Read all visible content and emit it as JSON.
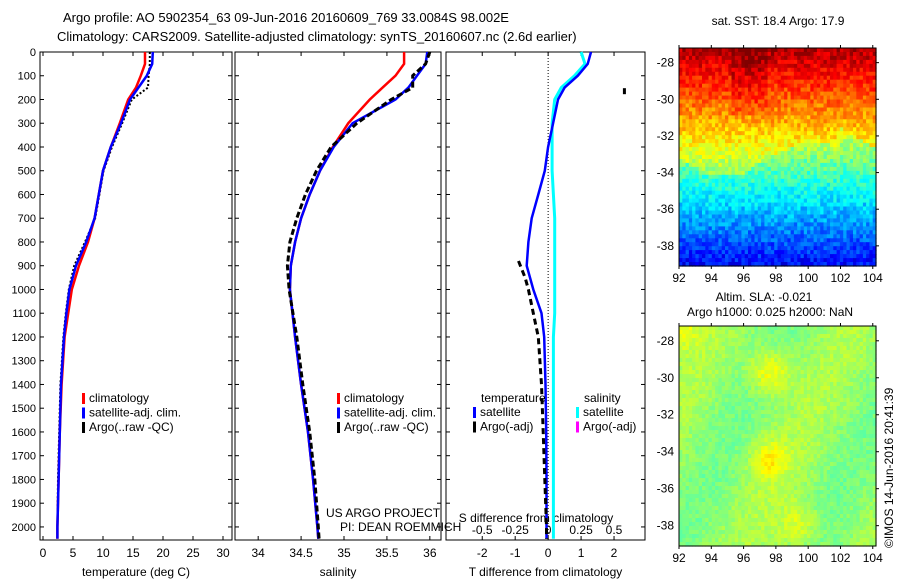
{
  "title_line1": "Argo profile: AO 5902354_63 09-Jun-2016 20160609_769 33.0084S 98.002E",
  "title_line2": "Climatology: CARS2009. Satellite-adjusted climatology: synTS_20160607.nc (2.6d earlier)",
  "credit": "©IMOS 14-Jun-2016 20:41:39",
  "project_line1": "US ARGO PROJECT",
  "project_line2": "PI: DEAN ROEMMICH",
  "colors": {
    "climatology": "#ff0000",
    "satellite": "#0000ff",
    "argo": "#000000",
    "sal_satellite": "#00ffff",
    "sal_argo": "#ff00ff"
  },
  "chart_data": [
    {
      "type": "line",
      "xlabel": "temperature (deg C)",
      "ylabel": "",
      "xlim": [
        -0.5,
        31.5
      ],
      "ylim": [
        2055,
        0
      ],
      "xticks": [
        0,
        5,
        10,
        15,
        20,
        25,
        30
      ],
      "yticks": [
        0,
        100,
        200,
        300,
        400,
        500,
        600,
        700,
        800,
        900,
        1000,
        1100,
        1200,
        1300,
        1400,
        1500,
        1600,
        1700,
        1800,
        1900,
        2000
      ],
      "legend": [
        "climatology",
        "satellite-adj. clim.",
        "Argo(..raw -QC)"
      ],
      "depth": [
        0,
        50,
        100,
        150,
        200,
        300,
        400,
        500,
        600,
        700,
        800,
        900,
        1000,
        1100,
        1200,
        1400,
        1600,
        1800,
        2000,
        2050
      ],
      "series": [
        {
          "name": "climatology",
          "values": [
            17.0,
            17.0,
            16.3,
            15.5,
            14.2,
            12.8,
            11.3,
            10.0,
            9.3,
            8.6,
            7.5,
            6.0,
            4.8,
            4.2,
            3.6,
            3.1,
            2.8,
            2.6,
            2.4,
            2.4
          ]
        },
        {
          "name": "satellite-adj. clim.",
          "values": [
            18.3,
            18.2,
            17.3,
            15.9,
            14.5,
            13.0,
            11.3,
            10.0,
            9.3,
            8.6,
            7.2,
            5.5,
            4.4,
            3.9,
            3.5,
            3.0,
            2.8,
            2.6,
            2.4,
            2.4
          ]
        },
        {
          "name": "Argo(..raw -QC)",
          "values": [
            17.8,
            17.8,
            17.6,
            17.5,
            14.8,
            13.2,
            11.5,
            10.1,
            9.4,
            8.7,
            7.0,
            5.2,
            4.3,
            3.8,
            3.4,
            2.9,
            2.7,
            2.5,
            2.4,
            2.4
          ]
        }
      ]
    },
    {
      "type": "line",
      "xlabel": "salinity",
      "xlim": [
        33.73,
        36.13
      ],
      "ylim": [
        2055,
        0
      ],
      "xticks": [
        34,
        34.5,
        35,
        35.5,
        36
      ],
      "legend": [
        "climatology",
        "satellite-adj. clim.",
        "Argo(..raw -QC)"
      ],
      "depth": [
        0,
        50,
        100,
        150,
        200,
        300,
        400,
        500,
        600,
        700,
        800,
        900,
        1000,
        1200,
        1400,
        1600,
        1800,
        2000,
        2050
      ],
      "series": [
        {
          "name": "climatology",
          "values": [
            35.7,
            35.7,
            35.6,
            35.45,
            35.3,
            35.05,
            34.87,
            34.72,
            34.6,
            34.5,
            34.43,
            34.38,
            34.37,
            34.43,
            34.5,
            34.58,
            34.64,
            34.69,
            34.7
          ]
        },
        {
          "name": "satellite-adj. clim.",
          "values": [
            35.97,
            35.95,
            35.85,
            35.75,
            35.6,
            35.1,
            34.88,
            34.72,
            34.6,
            34.5,
            34.43,
            34.38,
            34.37,
            34.43,
            34.5,
            34.58,
            34.64,
            34.69,
            34.7
          ]
        },
        {
          "name": "Argo(..raw -QC)",
          "values": [
            36.0,
            35.95,
            35.8,
            35.8,
            35.55,
            35.15,
            34.85,
            34.68,
            34.55,
            34.45,
            34.37,
            34.34,
            34.36,
            34.45,
            34.52,
            34.6,
            34.66,
            34.7,
            34.71
          ]
        }
      ]
    },
    {
      "type": "line",
      "xlabel": "T difference from climatology",
      "x2label": "S difference from climatology",
      "xlim": [
        -3.1,
        2.94
      ],
      "ylim": [
        2055,
        0
      ],
      "xticks": [
        -2,
        -1,
        0,
        1,
        2
      ],
      "x2ticks": [
        -0.5,
        -0.25,
        0,
        0.25,
        0.5
      ],
      "legend_temperature_title": "temperature",
      "legend_salinity_title": "salinity",
      "legend_labels": [
        "satellite",
        "Argo(-adj)"
      ],
      "depth": [
        0,
        50,
        100,
        150,
        200,
        300,
        400,
        500,
        600,
        700,
        800,
        900,
        1000,
        1100,
        1200,
        1400,
        1600,
        1800,
        2000,
        2050
      ],
      "series": [
        {
          "name": "temperature satellite",
          "values": [
            1.3,
            1.2,
            0.9,
            0.5,
            0.3,
            0.15,
            0.0,
            -0.1,
            -0.3,
            -0.5,
            -0.6,
            -0.65,
            -0.45,
            -0.2,
            -0.12,
            -0.08,
            -0.06,
            -0.05,
            -0.05,
            -0.05
          ]
        },
        {
          "name": "salinity satellite",
          "values": [
            0.25,
            0.28,
            0.2,
            0.1,
            0.05,
            0.03,
            0.03,
            0.03,
            0.04,
            0.05,
            0.05,
            0.05,
            0.05,
            0.05,
            0.04,
            0.04,
            0.04,
            0.04,
            0.04,
            0.04
          ]
        },
        {
          "name": "temperature Argo(-adj)",
          "depth": [
            880,
            950,
            1000,
            1100,
            1200,
            1300,
            1400,
            1600,
            1800,
            2000,
            2050
          ],
          "values": [
            -0.9,
            -0.7,
            -0.6,
            -0.45,
            -0.3,
            -0.25,
            -0.2,
            -0.15,
            -0.1,
            -0.05,
            -0.05
          ]
        },
        {
          "name": "outlier",
          "depth": [
            165
          ],
          "values": [
            2.3
          ]
        }
      ]
    },
    {
      "type": "heatmap",
      "title": "sat. SST: 18.4 Argo: 17.9",
      "xlim": [
        92,
        104.2
      ],
      "ylim": [
        -27.2,
        -39.1
      ],
      "xticks": [
        92,
        94,
        96,
        98,
        100,
        102,
        104
      ],
      "yticks": [
        -28,
        -30,
        -32,
        -34,
        -36,
        -38
      ]
    },
    {
      "type": "heatmap",
      "title": "Altim. SLA: -0.021",
      "subtitle": "Argo h1000: 0.025 h2000: NaN",
      "xlim": [
        92,
        104.2
      ],
      "ylim": [
        -27.2,
        -39.1
      ],
      "xticks": [
        92,
        94,
        96,
        98,
        100,
        102,
        104
      ],
      "yticks": [
        -28,
        -30,
        -32,
        -34,
        -36,
        -38
      ]
    }
  ]
}
